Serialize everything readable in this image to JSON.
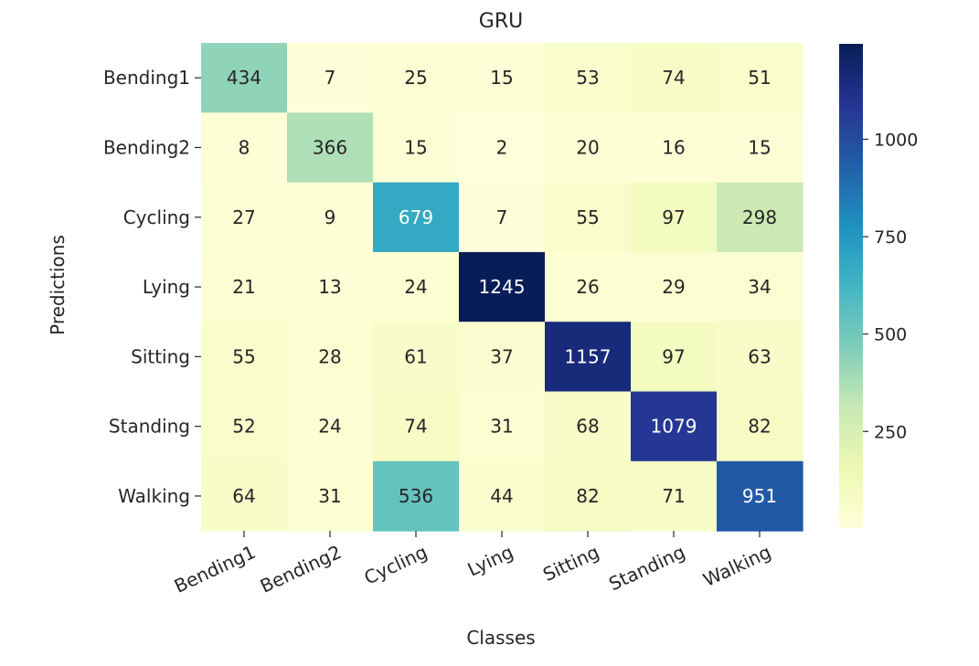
{
  "chart_data": {
    "type": "heatmap",
    "title": "GRU",
    "xlabel": "Classes",
    "ylabel": "Predictions",
    "x_categories": [
      "Bending1",
      "Bending2",
      "Cycling",
      "Lying",
      "Sitting",
      "Standing",
      "Walking"
    ],
    "y_categories": [
      "Bending1",
      "Bending2",
      "Cycling",
      "Lying",
      "Sitting",
      "Standing",
      "Walking"
    ],
    "values": [
      [
        434,
        7,
        25,
        15,
        53,
        74,
        51
      ],
      [
        8,
        366,
        15,
        2,
        20,
        16,
        15
      ],
      [
        27,
        9,
        679,
        7,
        55,
        97,
        298
      ],
      [
        21,
        13,
        24,
        1245,
        26,
        29,
        34
      ],
      [
        55,
        28,
        61,
        37,
        1157,
        97,
        63
      ],
      [
        52,
        24,
        74,
        31,
        68,
        1079,
        82
      ],
      [
        64,
        31,
        536,
        44,
        82,
        71,
        951
      ]
    ],
    "colormap": "YlGnBu",
    "colorbar": {
      "min": 2,
      "max": 1245,
      "ticks": [
        250,
        500,
        750,
        1000
      ]
    },
    "xtick_rotation": 25
  }
}
